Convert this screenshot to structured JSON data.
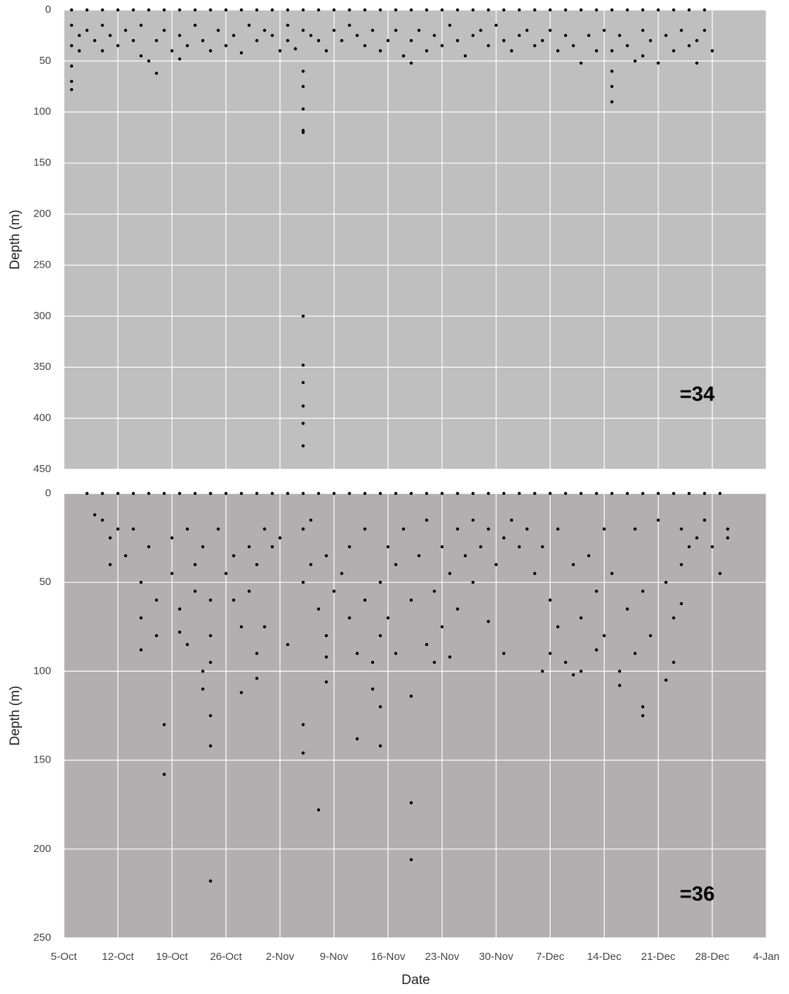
{
  "chart_data": [
    {
      "type": "scatter",
      "ylabel": "Depth (m)",
      "annotation": "=34",
      "color": "#000000",
      "background": "#bfbfbf",
      "grid": true,
      "invert_y": true,
      "xlim": [
        0,
        91
      ],
      "ylim": [
        0,
        450
      ],
      "yticks": [
        0,
        50,
        100,
        150,
        200,
        250,
        300,
        350,
        400,
        450
      ],
      "x": [
        1,
        3,
        5,
        7,
        9,
        11,
        13,
        15,
        17,
        19,
        21,
        23,
        25,
        27,
        29,
        31,
        33,
        35,
        37,
        39,
        41,
        43,
        45,
        47,
        49,
        51,
        53,
        55,
        57,
        59,
        61,
        63,
        65,
        67,
        69,
        71,
        73,
        75,
        77,
        79,
        81,
        83,
        1,
        1,
        1,
        1,
        1,
        2,
        2,
        3,
        4,
        5,
        5,
        6,
        7,
        8,
        9,
        10,
        10,
        11,
        12,
        12,
        13,
        14,
        15,
        15,
        16,
        17,
        18,
        19,
        20,
        21,
        22,
        23,
        24,
        25,
        26,
        27,
        28,
        29,
        29,
        30,
        31,
        31,
        31,
        31,
        31,
        31,
        31,
        31,
        31,
        31,
        31,
        31,
        32,
        33,
        34,
        35,
        36,
        37,
        38,
        39,
        40,
        41,
        42,
        43,
        44,
        45,
        45,
        46,
        47,
        48,
        49,
        50,
        51,
        52,
        53,
        54,
        55,
        56,
        57,
        58,
        59,
        60,
        61,
        62,
        63,
        64,
        65,
        66,
        67,
        68,
        69,
        70,
        71,
        71,
        71,
        71,
        72,
        73,
        74,
        75,
        75,
        76,
        77,
        78,
        79,
        80,
        81,
        82,
        82,
        83,
        84
      ],
      "values": [
        0,
        0,
        0,
        0,
        0,
        0,
        0,
        0,
        0,
        0,
        0,
        0,
        0,
        0,
        0,
        0,
        0,
        0,
        0,
        0,
        0,
        0,
        0,
        0,
        0,
        0,
        0,
        0,
        0,
        0,
        0,
        0,
        0,
        0,
        0,
        0,
        0,
        0,
        0,
        0,
        0,
        0,
        15,
        35,
        55,
        70,
        78,
        25,
        40,
        20,
        30,
        15,
        40,
        25,
        35,
        20,
        30,
        45,
        15,
        50,
        30,
        62,
        20,
        40,
        25,
        48,
        35,
        15,
        30,
        40,
        20,
        35,
        25,
        42,
        15,
        30,
        20,
        25,
        40,
        15,
        30,
        38,
        20,
        120,
        300,
        348,
        365,
        388,
        405,
        427,
        60,
        75,
        97,
        118,
        25,
        30,
        40,
        20,
        30,
        15,
        25,
        35,
        20,
        40,
        30,
        20,
        45,
        30,
        52,
        20,
        40,
        25,
        35,
        15,
        30,
        45,
        25,
        20,
        35,
        15,
        30,
        40,
        25,
        20,
        35,
        30,
        20,
        40,
        25,
        35,
        52,
        25,
        40,
        20,
        90,
        75,
        60,
        40,
        25,
        35,
        50,
        20,
        45,
        30,
        52,
        25,
        40,
        20,
        35,
        30,
        52,
        20,
        40
      ]
    },
    {
      "type": "scatter",
      "ylabel": "Depth (m)",
      "xlabel": "Date",
      "annotation": "=36",
      "color": "#000000",
      "background": "#b3afb0",
      "grid": true,
      "invert_y": true,
      "xlim": [
        0,
        91
      ],
      "ylim": [
        0,
        250
      ],
      "yticks": [
        0,
        50,
        100,
        150,
        200,
        250
      ],
      "xticks": [
        {
          "value": 0,
          "label": "5-Oct"
        },
        {
          "value": 7,
          "label": "12-Oct"
        },
        {
          "value": 14,
          "label": "19-Oct"
        },
        {
          "value": 21,
          "label": "26-Oct"
        },
        {
          "value": 28,
          "label": "2-Nov"
        },
        {
          "value": 35,
          "label": "9-Nov"
        },
        {
          "value": 42,
          "label": "16-Nov"
        },
        {
          "value": 49,
          "label": "23-Nov"
        },
        {
          "value": 56,
          "label": "30-Nov"
        },
        {
          "value": 63,
          "label": "7-Dec"
        },
        {
          "value": 70,
          "label": "14-Dec"
        },
        {
          "value": 77,
          "label": "21-Dec"
        },
        {
          "value": 84,
          "label": "28-Dec"
        },
        {
          "value": 91,
          "label": "4-Jan"
        }
      ],
      "x": [
        3,
        5,
        7,
        9,
        11,
        13,
        15,
        17,
        19,
        21,
        23,
        25,
        27,
        29,
        31,
        33,
        35,
        37,
        39,
        41,
        43,
        45,
        47,
        49,
        51,
        53,
        55,
        57,
        59,
        61,
        63,
        65,
        67,
        69,
        71,
        73,
        75,
        77,
        79,
        81,
        83,
        85,
        4,
        5,
        6,
        6,
        7,
        8,
        9,
        10,
        10,
        10,
        11,
        12,
        12,
        13,
        13,
        14,
        14,
        15,
        15,
        16,
        16,
        17,
        17,
        18,
        18,
        18,
        19,
        19,
        19,
        19,
        19,
        19,
        20,
        21,
        22,
        22,
        23,
        23,
        24,
        24,
        25,
        25,
        25,
        26,
        26,
        27,
        28,
        29,
        31,
        31,
        31,
        31,
        32,
        32,
        33,
        33,
        34,
        34,
        34,
        34,
        35,
        36,
        37,
        37,
        38,
        38,
        39,
        39,
        40,
        40,
        41,
        41,
        41,
        41,
        42,
        42,
        43,
        43,
        44,
        45,
        45,
        45,
        45,
        46,
        47,
        47,
        48,
        48,
        49,
        49,
        50,
        50,
        51,
        51,
        52,
        53,
        53,
        54,
        55,
        55,
        56,
        57,
        57,
        58,
        59,
        60,
        61,
        62,
        62,
        63,
        63,
        64,
        64,
        65,
        66,
        66,
        67,
        67,
        68,
        69,
        69,
        70,
        70,
        71,
        72,
        72,
        73,
        74,
        74,
        75,
        75,
        75,
        76,
        77,
        78,
        78,
        79,
        79,
        80,
        80,
        80,
        81,
        82,
        83,
        84,
        85,
        86,
        86
      ],
      "values": [
        0,
        0,
        0,
        0,
        0,
        0,
        0,
        0,
        0,
        0,
        0,
        0,
        0,
        0,
        0,
        0,
        0,
        0,
        0,
        0,
        0,
        0,
        0,
        0,
        0,
        0,
        0,
        0,
        0,
        0,
        0,
        0,
        0,
        0,
        0,
        0,
        0,
        0,
        0,
        0,
        0,
        0,
        12,
        15,
        25,
        40,
        20,
        35,
        20,
        50,
        70,
        88,
        30,
        60,
        80,
        130,
        158,
        25,
        45,
        65,
        78,
        20,
        85,
        40,
        55,
        30,
        100,
        110,
        60,
        80,
        95,
        125,
        142,
        218,
        20,
        45,
        35,
        60,
        75,
        112,
        30,
        55,
        40,
        90,
        104,
        20,
        75,
        30,
        25,
        85,
        20,
        50,
        130,
        146,
        15,
        40,
        65,
        178,
        35,
        80,
        92,
        106,
        55,
        45,
        70,
        30,
        90,
        138,
        60,
        20,
        95,
        110,
        50,
        80,
        120,
        142,
        30,
        70,
        40,
        90,
        20,
        60,
        114,
        174,
        206,
        35,
        15,
        85,
        55,
        95,
        30,
        75,
        45,
        92,
        20,
        65,
        35,
        15,
        50,
        30,
        20,
        72,
        40,
        25,
        90,
        15,
        30,
        20,
        45,
        30,
        100,
        60,
        90,
        20,
        75,
        95,
        40,
        102,
        70,
        100,
        35,
        55,
        88,
        80,
        20,
        45,
        100,
        108,
        65,
        90,
        20,
        55,
        120,
        125,
        80,
        15,
        50,
        105,
        95,
        70,
        20,
        40,
        62,
        30,
        25,
        15,
        30,
        45,
        25,
        20
      ]
    }
  ]
}
